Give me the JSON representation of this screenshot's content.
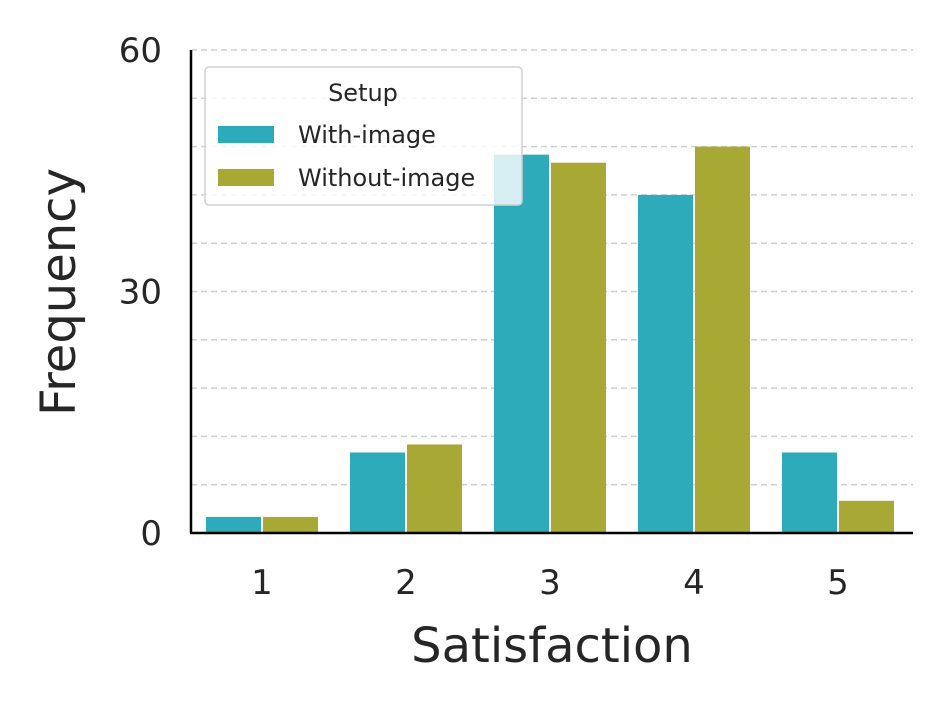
{
  "chart_data": {
    "type": "bar",
    "title": "",
    "xlabel": "Satisfaction",
    "ylabel": "Frequency",
    "categories": [
      "1",
      "2",
      "3",
      "4",
      "5"
    ],
    "series": [
      {
        "name": "With-image",
        "color": "#2eabbb",
        "values": [
          2,
          10,
          47,
          42,
          10
        ]
      },
      {
        "name": "Without-image",
        "color": "#a8a835",
        "values": [
          2,
          11,
          46,
          48,
          4
        ]
      }
    ],
    "ylim": [
      0,
      60
    ],
    "yticks": [
      "0",
      "30",
      "60"
    ],
    "grid": "horizontal dashed",
    "legend": {
      "title": "Setup",
      "placement": "top-left"
    }
  }
}
